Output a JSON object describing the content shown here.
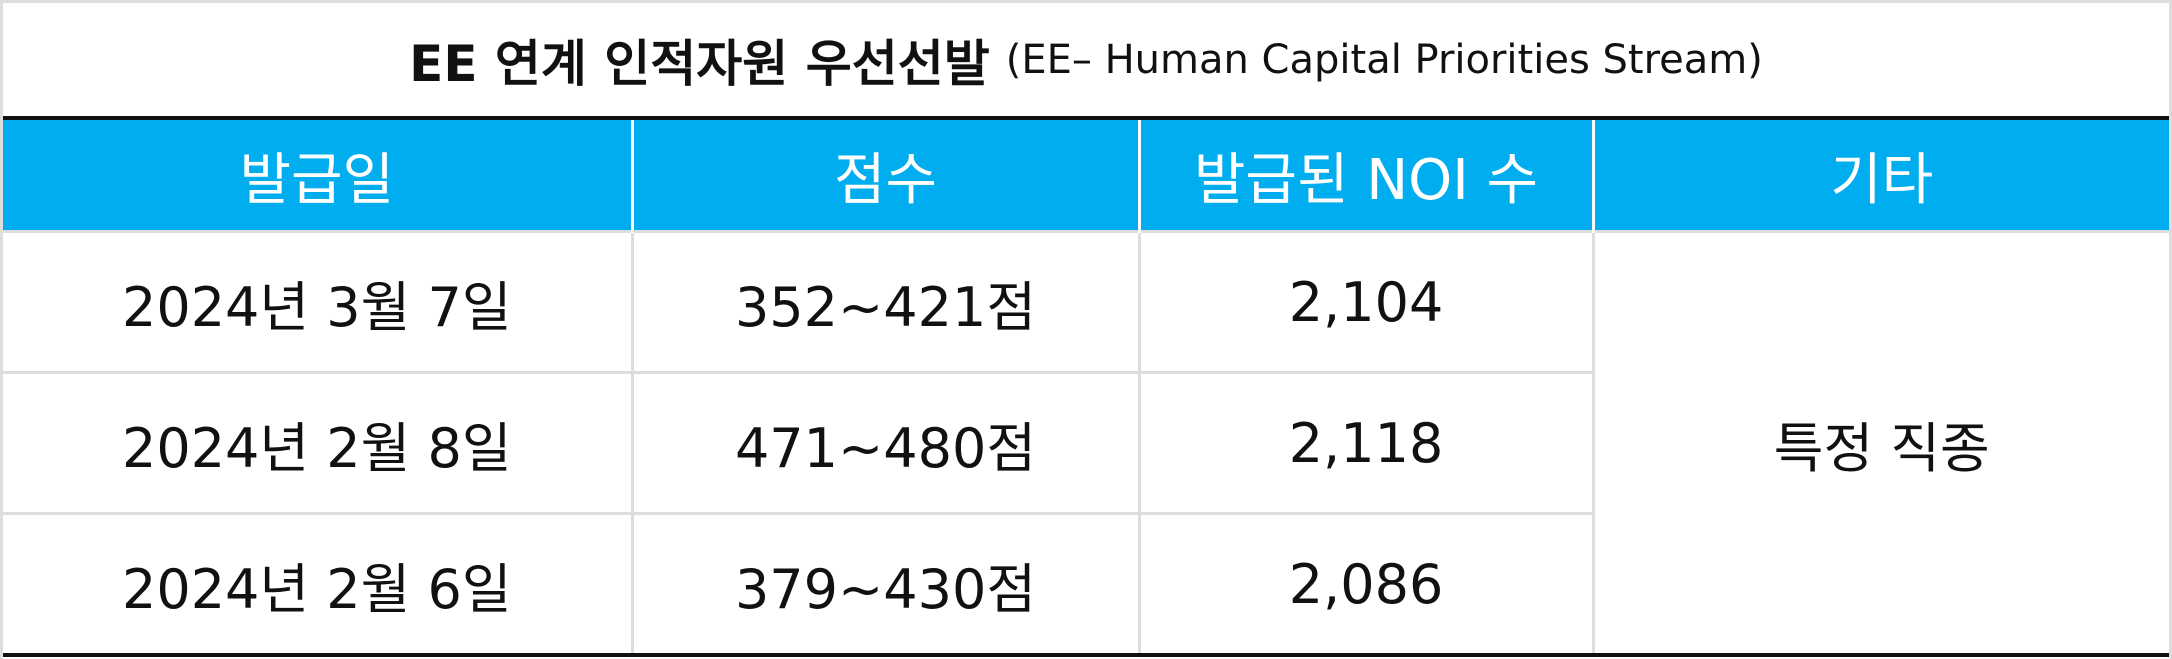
{
  "title": {
    "main": "EE 연계 인적자원 우선선발",
    "sub": "(EE– Human Capital Priorities Stream)"
  },
  "table": {
    "header": [
      "발급일",
      "점수",
      "발급된 NOI 수",
      "기타"
    ],
    "rows": [
      [
        "2024년 3월 7일",
        "352~421점",
        "2,104"
      ],
      [
        "2024년 2월 8일",
        "471~480점",
        "2,118"
      ],
      [
        "2024년 2월 6일",
        "379~430점",
        "2,086"
      ]
    ],
    "merged_cell": "특정 직종"
  }
}
